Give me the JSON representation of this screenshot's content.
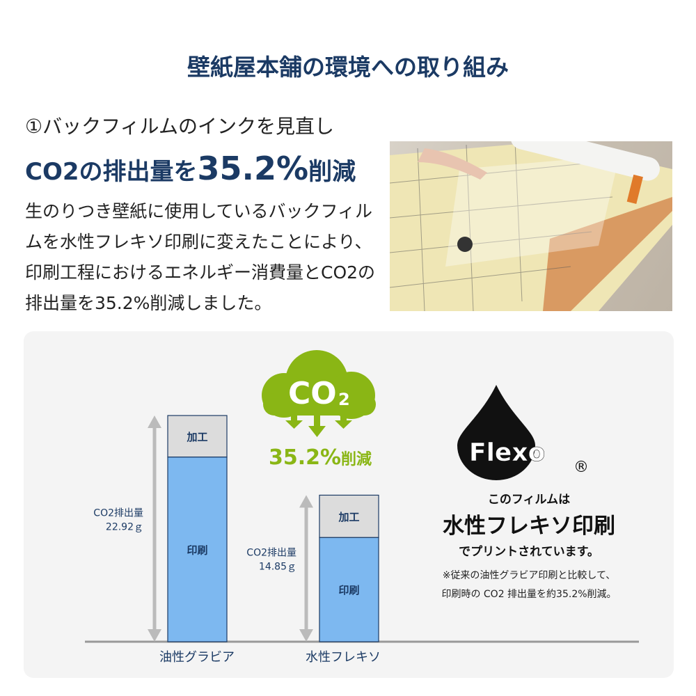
{
  "header": {
    "title": "壁紙屋本舗の環境への取り組み"
  },
  "section": {
    "subtitle": "①バックフィルムのインクを見直し",
    "headline_pre": "CO2の排出量を",
    "headline_value": "35.2%",
    "headline_post": "削減",
    "body": "生のりつき壁紙に使用しているバックフィルムを水性フレキソ印刷に変えたことにより、印刷工程におけるエネルギー消費量とCO2の排出量を35.2%削減しました。"
  },
  "co2_badge": {
    "label": "CO",
    "sub": "2",
    "reduction_value": "35.2%",
    "reduction_label": "削減",
    "color": "#8ab615"
  },
  "flexo": {
    "logo": "Flexo",
    "registered": "®",
    "line1": "このフィルムは",
    "line2": "水性フレキソ印刷",
    "line3": "でプリントされています。",
    "note1": "※従来の油性グラビア印刷と比較して、",
    "note2": "印刷時の CO2 排出量を約35.2%削減。"
  },
  "chart_data": {
    "type": "bar",
    "stacked": true,
    "categories": [
      "油性グラビア",
      "水性フレキソ"
    ],
    "series": [
      {
        "name": "印刷",
        "values": [
          18.7,
          10.6
        ],
        "color": "#7db8f0"
      },
      {
        "name": "加工",
        "values": [
          4.2,
          4.3
        ],
        "color": "#dcdcdc"
      }
    ],
    "totals": [
      22.92,
      14.85
    ],
    "total_labels": [
      [
        "CO2排出量",
        "22.92ｇ"
      ],
      [
        "CO2排出量",
        "14.85ｇ"
      ]
    ],
    "unit": "g",
    "ylim": [
      0,
      22.92
    ],
    "grid": false,
    "legend": "none"
  }
}
